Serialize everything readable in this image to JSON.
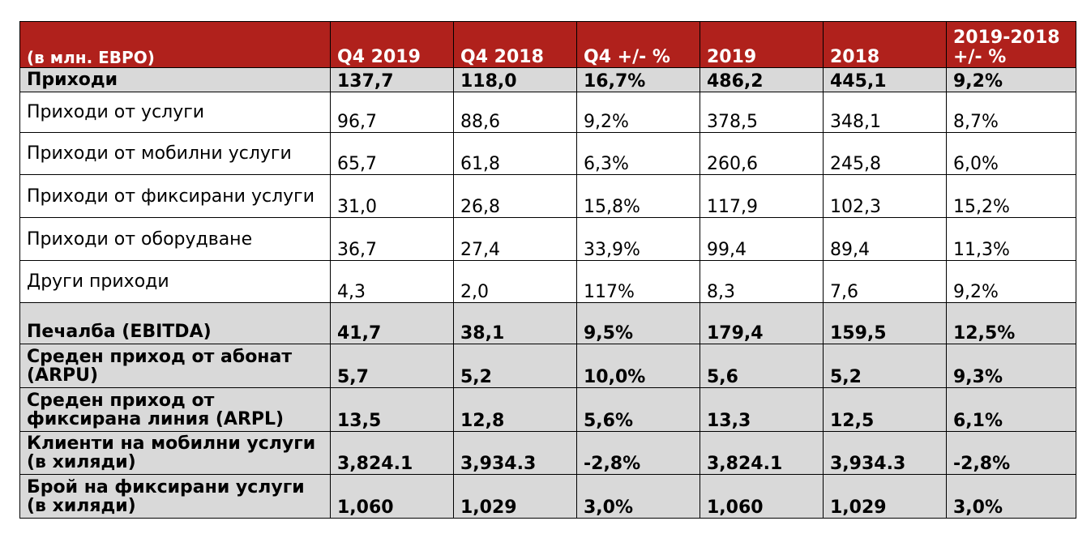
{
  "columns": [
    "(в млн. ЕВРО)",
    "Q4 2019",
    "Q4 2018",
    "Q4 +/- %",
    "2019",
    "2018",
    "2019-2018 +/- %"
  ],
  "rows": [
    {
      "label": "Приходи",
      "bold": true,
      "values": [
        "137,7",
        "118,0",
        "16,7%",
        "486,2",
        "445,1",
        "9,2%"
      ]
    },
    {
      "label": "Приходи от услуги",
      "bold": false,
      "values": [
        "96,7",
        "88,6",
        "9,2%",
        "378,5",
        "348,1",
        "8,7%"
      ]
    },
    {
      "label": "Приходи от мобилни услуги",
      "bold": false,
      "values": [
        "65,7",
        "61,8",
        "6,3%",
        "260,6",
        "245,8",
        "6,0%"
      ]
    },
    {
      "label": "Приходи от фиксирани услуги",
      "bold": false,
      "values": [
        "31,0",
        "26,8",
        "15,8%",
        "117,9",
        "102,3",
        "15,2%"
      ]
    },
    {
      "label": "Приходи от оборудване",
      "bold": false,
      "values": [
        "36,7",
        "27,4",
        "33,9%",
        "99,4",
        "89,4",
        "11,3%"
      ]
    },
    {
      "label": "Други приходи",
      "bold": false,
      "values": [
        "4,3",
        "2,0",
        "117%",
        "8,3",
        "7,6",
        "9,2%"
      ]
    },
    {
      "label": "Печалба (EBITDA)",
      "bold": true,
      "values": [
        "41,7",
        "38,1",
        "9,5%",
        "179,4",
        "159,5",
        "12,5%"
      ]
    },
    {
      "label": "Среден приход от абонат (ARPU)",
      "bold": true,
      "values": [
        "5,7",
        "5,2",
        "10,0%",
        "5,6",
        "5,2",
        "9,3%"
      ]
    },
    {
      "label": "Среден приход от фиксирана линия (ARPL)",
      "bold": true,
      "values": [
        "13,5",
        "12,8",
        "5,6%",
        "13,3",
        "12,5",
        "6,1%"
      ]
    },
    {
      "label": "Клиенти на мобилни услуги (в хиляди)",
      "bold": true,
      "values": [
        "3,824.1",
        "3,934.3",
        "-2,8%",
        "3,824.1",
        "3,934.3",
        "-2,8%"
      ]
    },
    {
      "label": "Брой на фиксирани услуги (в хиляди)",
      "bold": true,
      "values": [
        "1,060",
        "1,029",
        "3,0%",
        "1,060",
        "1,029",
        "3,0%"
      ]
    }
  ],
  "colors": {
    "header_bg": "#b0211c",
    "header_text": "#ffffff",
    "highlight_row_bg": "#d9d9d9"
  }
}
